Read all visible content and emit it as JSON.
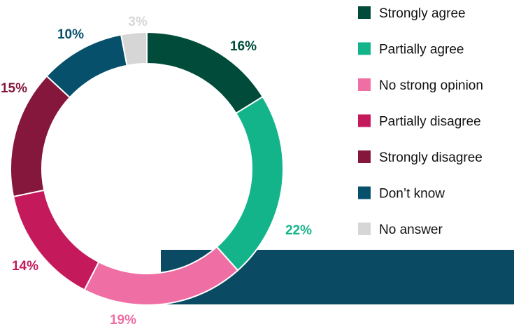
{
  "chart_data": {
    "type": "pie",
    "variant": "donut",
    "categories": [
      "Strongly agree",
      "Partially agree",
      "No strong opinion",
      "Partially disagree",
      "Strongly disagree",
      "Don’t know",
      "No answer"
    ],
    "values": [
      16,
      22,
      19,
      14,
      15,
      10,
      3
    ],
    "labels": [
      "16%",
      "22%",
      "19%",
      "14%",
      "15%",
      "10%",
      "3%"
    ],
    "colors": [
      "#004b39",
      "#14b48b",
      "#ef6ea4",
      "#c41a5c",
      "#85173d",
      "#06506c",
      "#d6d6d6"
    ],
    "label_colors": [
      "#004b39",
      "#14b48b",
      "#ef6ea4",
      "#c41a5c",
      "#85173d",
      "#06506c",
      "#d6d6d6"
    ],
    "legend_position": "right",
    "grid": false
  },
  "decor": {
    "band_color": "#0a4b63"
  }
}
